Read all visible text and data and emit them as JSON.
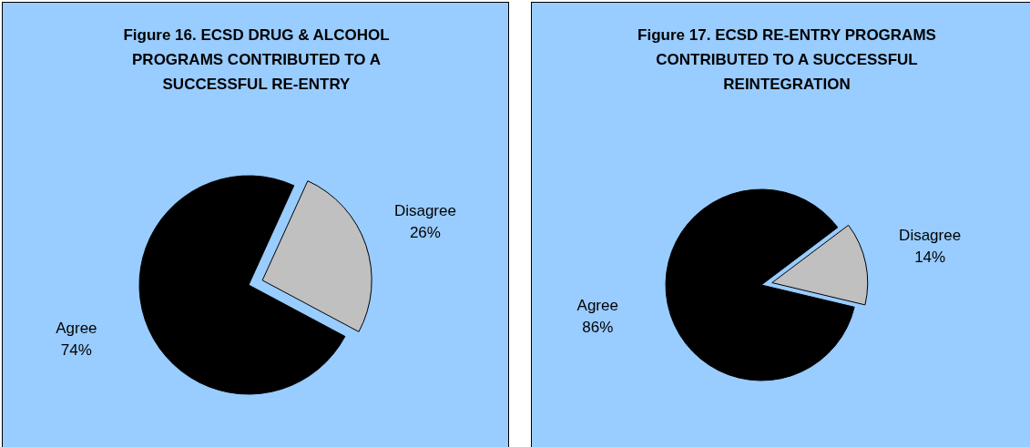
{
  "chart_data": [
    {
      "type": "pie",
      "title": "Figure 16. ECSD DRUG & ALCOHOL PROGRAMS CONTRIBUTED TO A SUCCESSFUL RE-ENTRY",
      "categories": [
        "Agree",
        "Disagree"
      ],
      "values": [
        74,
        26
      ],
      "value_labels": [
        "74%",
        "26%"
      ],
      "colors": [
        "#000000",
        "#c0c0c0"
      ],
      "legend": false
    },
    {
      "type": "pie",
      "title": "Figure 17. ECSD RE-ENTRY PROGRAMS CONTRIBUTED TO A SUCCESSFUL REINTEGRATION",
      "categories": [
        "Agree",
        "Disagree"
      ],
      "values": [
        86,
        14
      ],
      "value_labels": [
        "86%",
        "14%"
      ],
      "colors": [
        "#000000",
        "#c0c0c0"
      ],
      "legend": false
    }
  ]
}
